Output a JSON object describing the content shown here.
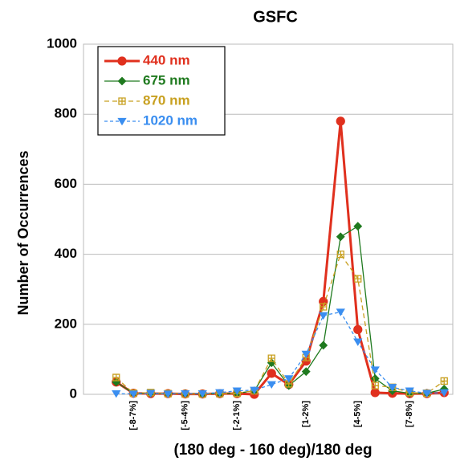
{
  "chart_data": {
    "type": "line",
    "title": "GSFC",
    "x_label": "(180 deg - 160 deg)/180 deg",
    "y_label": "Number of Occurrences",
    "categories": [
      null,
      "[-8-7%]",
      null,
      null,
      "[-5-4%]",
      null,
      null,
      "[-2-1%]",
      null,
      null,
      null,
      "[1-2%]",
      null,
      null,
      "[4-5%]",
      null,
      null,
      "[7-8%]",
      null,
      null
    ],
    "series": [
      {
        "name": "440 nm",
        "color": "#e0301e",
        "marker": "circle",
        "values": [
          35,
          3,
          2,
          2,
          1,
          1,
          2,
          2,
          0,
          60,
          28,
          95,
          265,
          780,
          185,
          5,
          3,
          2,
          2,
          5
        ]
      },
      {
        "name": "675 nm",
        "color": "#1f7a1f",
        "marker": "diamond",
        "values": [
          35,
          3,
          3,
          2,
          2,
          1,
          2,
          3,
          10,
          90,
          25,
          65,
          140,
          450,
          480,
          45,
          10,
          3,
          3,
          15
        ]
      },
      {
        "name": "870 nm",
        "color": "#c8a020",
        "marker": "square",
        "values": [
          48,
          3,
          5,
          2,
          1,
          1,
          2,
          3,
          10,
          103,
          30,
          105,
          250,
          400,
          330,
          25,
          20,
          5,
          3,
          38
        ]
      },
      {
        "name": "1020 nm",
        "color": "#3a8ef0",
        "marker": "triangle-down",
        "values": [
          2,
          1,
          3,
          1,
          2,
          2,
          5,
          10,
          12,
          28,
          45,
          115,
          225,
          235,
          150,
          70,
          20,
          10,
          3,
          5
        ]
      }
    ],
    "ylim": [
      0,
      1000
    ],
    "yticks": [
      0,
      200,
      400,
      600,
      800,
      1000
    ],
    "grid": true,
    "legend": "upper left"
  }
}
